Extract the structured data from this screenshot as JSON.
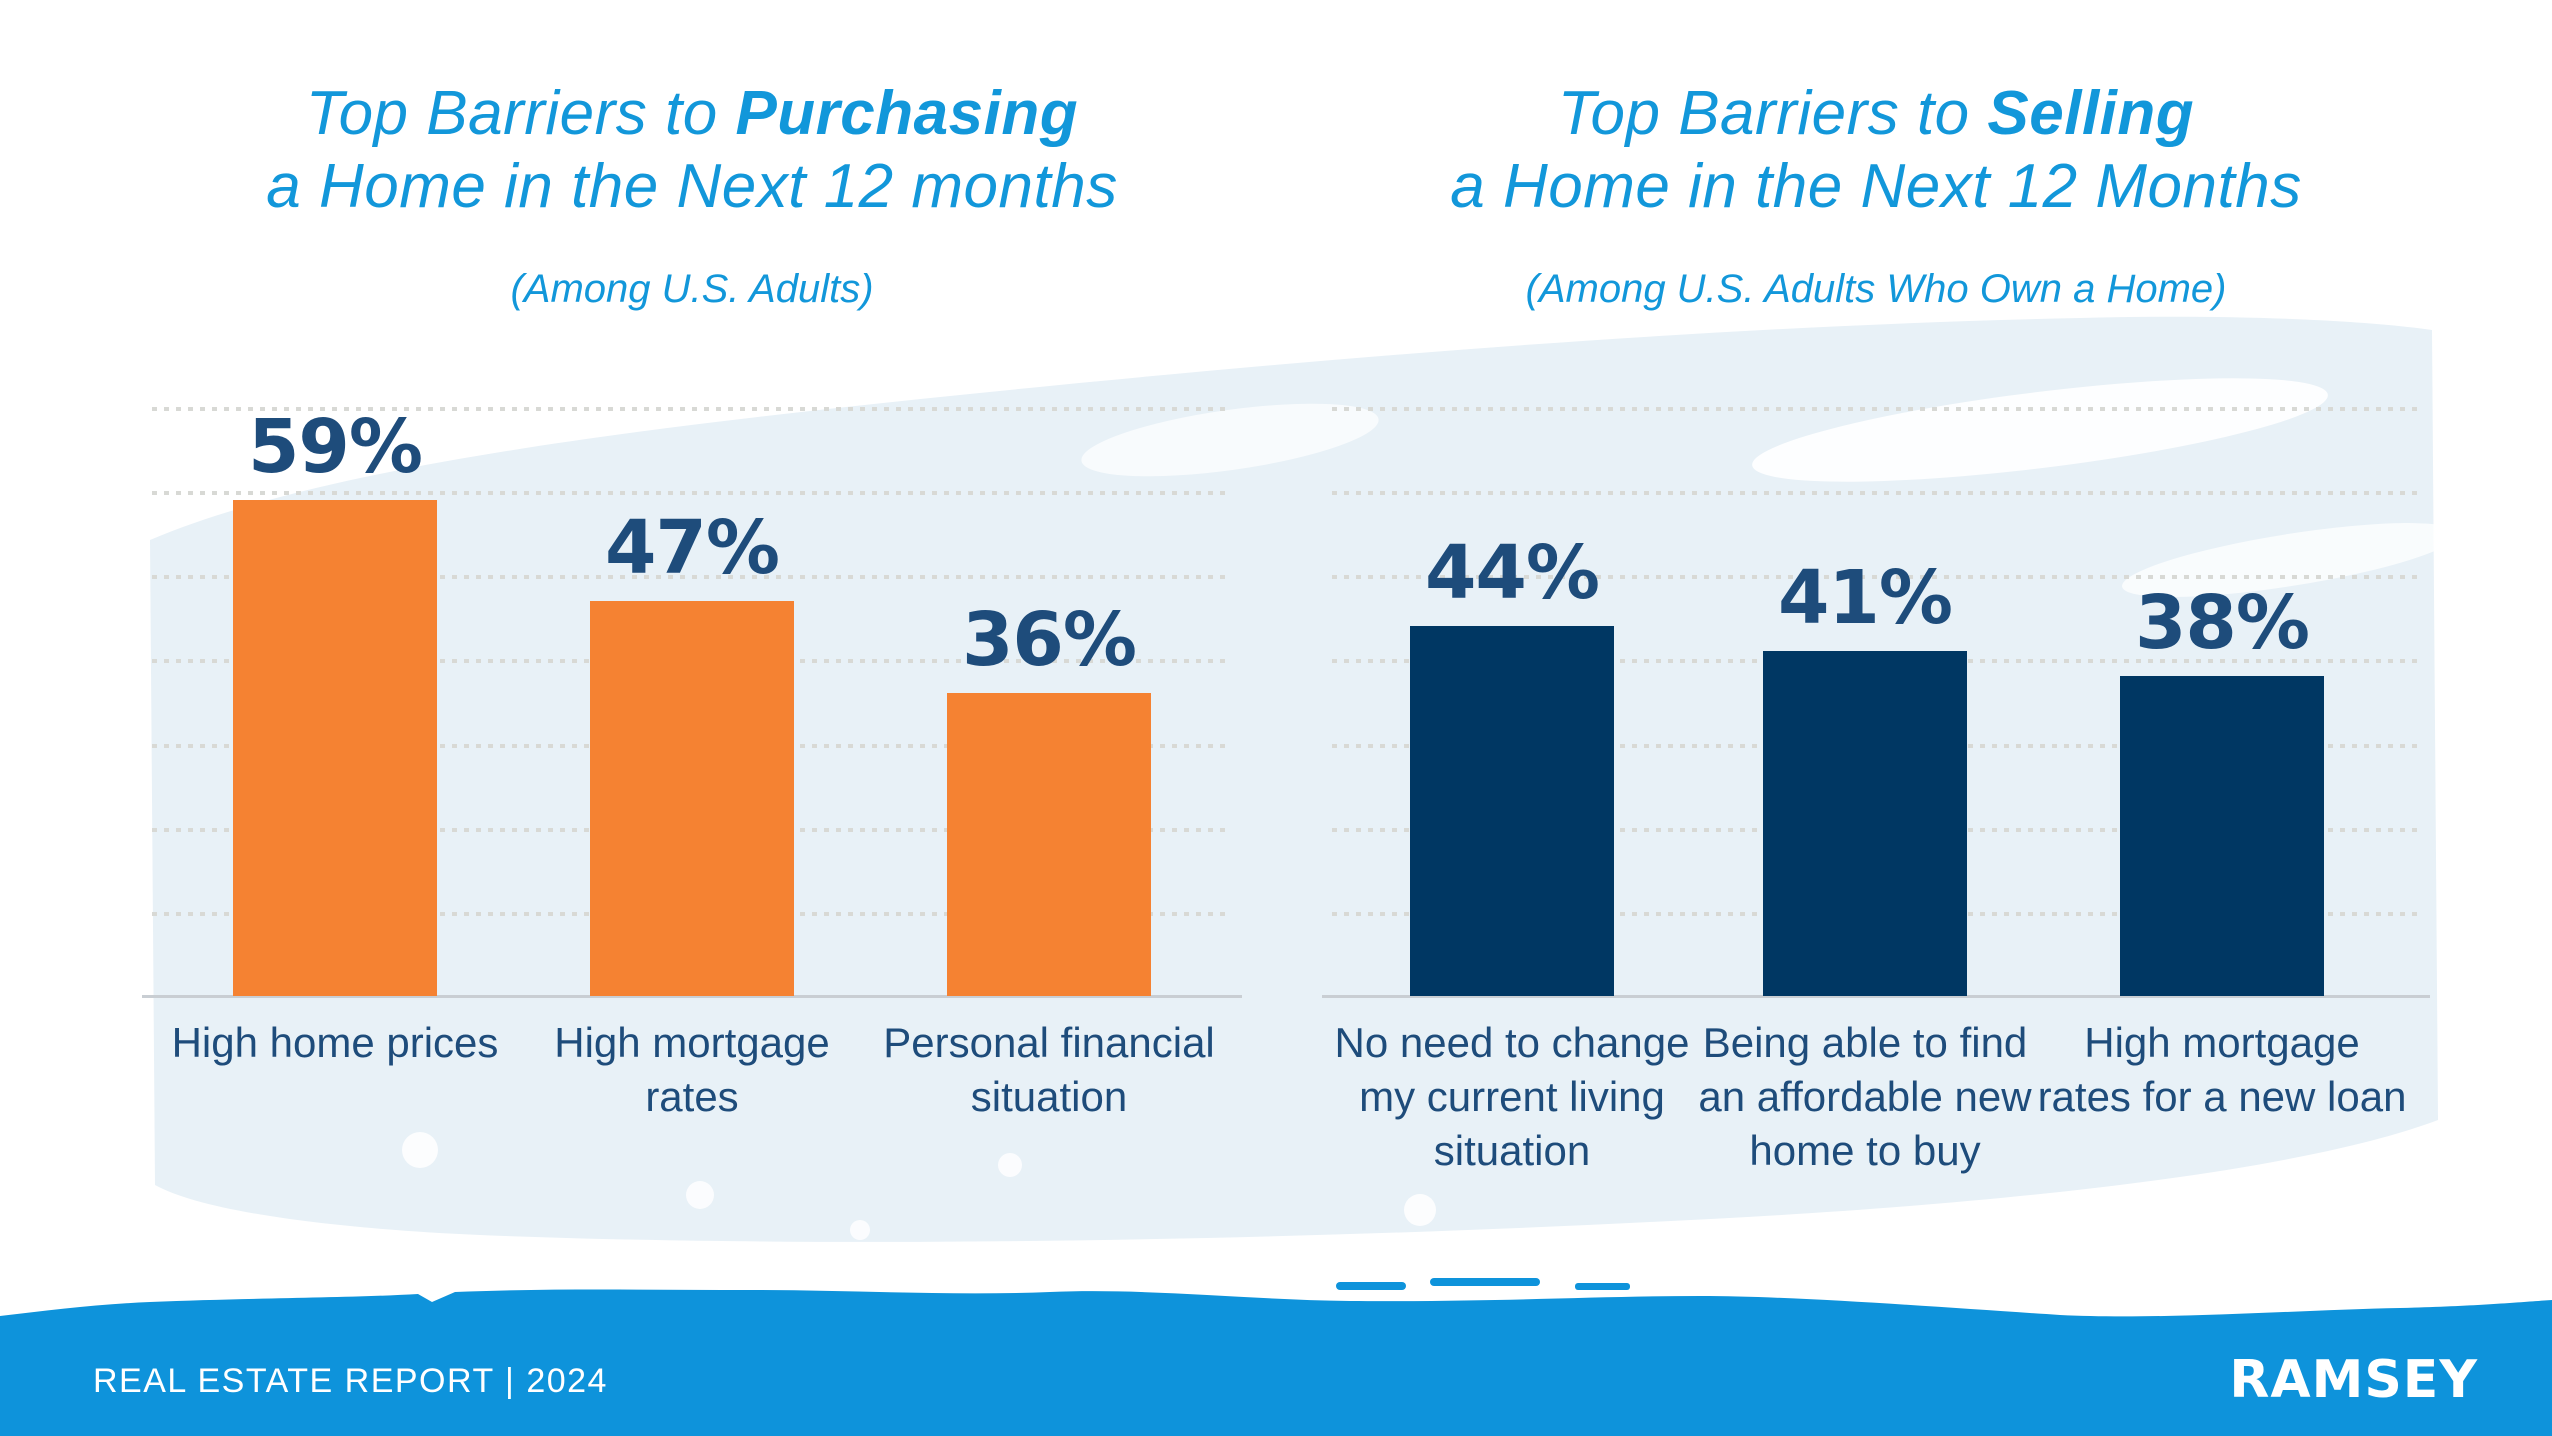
{
  "colors": {
    "title_blue": "#1297DA",
    "footer_blue": "#0E93DB",
    "navy_text": "#1E4C7B",
    "orange_bar": "#F58232",
    "navy_bar": "#003763",
    "wash_blue": "#E8F1F7",
    "gridline_gray": "#D8D9D5",
    "baseline_gray": "#C9CED3"
  },
  "left_chart": {
    "title_prefix": "Top Barriers to ",
    "title_emphasis": "Purchasing",
    "title_line2": "a Home in the Next 12 months",
    "subtitle": "(Among U.S. Adults)"
  },
  "right_chart": {
    "title_prefix": "Top Barriers to ",
    "title_emphasis": "Selling",
    "title_line2": "a Home in the Next 12 Months",
    "subtitle": "(Among U.S. Adults Who Own a Home)"
  },
  "footer": {
    "report_label": "REAL ESTATE REPORT | 2024",
    "brand": "RAMSEY"
  },
  "chart_data": [
    {
      "type": "bar",
      "title": "Top Barriers to Purchasing a Home in the Next 12 months",
      "subtitle": "(Among U.S. Adults)",
      "categories": [
        "High home prices",
        "High mortgage\nrates",
        "Personal financial\nsituation"
      ],
      "values": [
        59,
        47,
        36
      ],
      "value_labels": [
        "59%",
        "47%",
        "36%"
      ],
      "bar_color": "#F58232",
      "value_label_color": "#1E4C7B",
      "category_label_color": "#1E4C7B",
      "ylim": [
        0,
        70
      ],
      "gridline_step_percent": 10,
      "grid": "dotted horizontal lines, no y-axis tick labels",
      "legend": false
    },
    {
      "type": "bar",
      "title": "Top Barriers to Selling a Home in the Next 12 Months",
      "subtitle": "(Among U.S. Adults Who Own a Home)",
      "categories": [
        "No need to change\nmy current living\nsituation",
        "Being able to find\nan affordable new\nhome to buy",
        "High mortgage\nrates for a new loan"
      ],
      "values": [
        44,
        41,
        38
      ],
      "value_labels": [
        "44%",
        "41%",
        "38%"
      ],
      "bar_color": "#003763",
      "value_label_color": "#1E4C7B",
      "category_label_color": "#1E4C7B",
      "ylim": [
        0,
        70
      ],
      "gridline_step_percent": 10,
      "grid": "dotted horizontal lines, no y-axis tick labels",
      "legend": false
    }
  ]
}
